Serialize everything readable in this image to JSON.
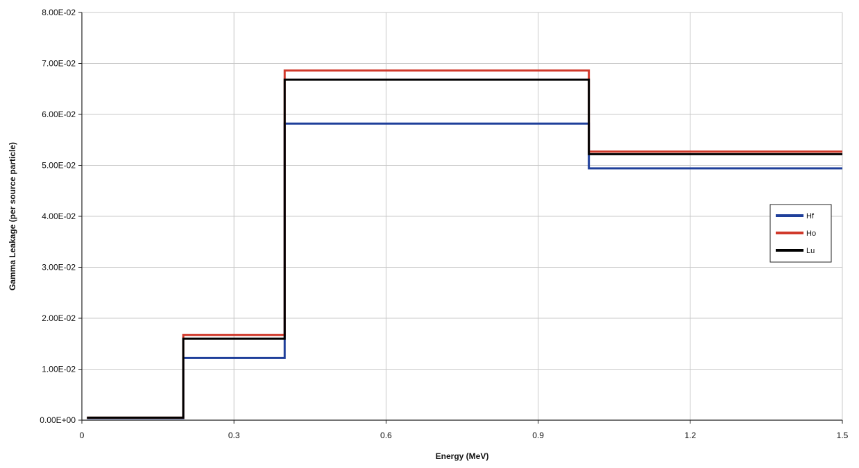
{
  "chart_data": {
    "type": "line",
    "step": true,
    "title": "",
    "xlabel": "Energy (MeV)",
    "ylabel": "Gamma Leakage (per source particle)",
    "xlim": [
      0,
      1.5
    ],
    "ylim": [
      0,
      0.08
    ],
    "x_ticks": [
      0,
      0.3,
      0.6,
      0.9,
      1.2,
      1.5
    ],
    "x_tick_labels": [
      "0",
      "0.3",
      "0.6",
      "0.9",
      "1.2",
      "1.5"
    ],
    "y_ticks": [
      0,
      0.01,
      0.02,
      0.03,
      0.04,
      0.05,
      0.06,
      0.07,
      0.08
    ],
    "y_tick_labels": [
      "0.00E+00",
      "1.00E-02",
      "2.00E-02",
      "3.00E-02",
      "4.00E-02",
      "5.00E-02",
      "6.00E-02",
      "7.00E-02",
      "8.00E-02"
    ],
    "grid": true,
    "legend_position": "right",
    "bin_edges": [
      0.01,
      0.2,
      0.4,
      1.0,
      1.5
    ],
    "series": [
      {
        "name": "Hf",
        "color": "#1f3f9a",
        "values": [
          0.0004,
          0.0122,
          0.0582,
          0.0494
        ]
      },
      {
        "name": "Ho",
        "color": "#d0392b",
        "values": [
          0.0005,
          0.0167,
          0.0686,
          0.0527
        ]
      },
      {
        "name": "Lu",
        "color": "#000000",
        "values": [
          0.0005,
          0.016,
          0.0668,
          0.0522
        ]
      }
    ]
  }
}
